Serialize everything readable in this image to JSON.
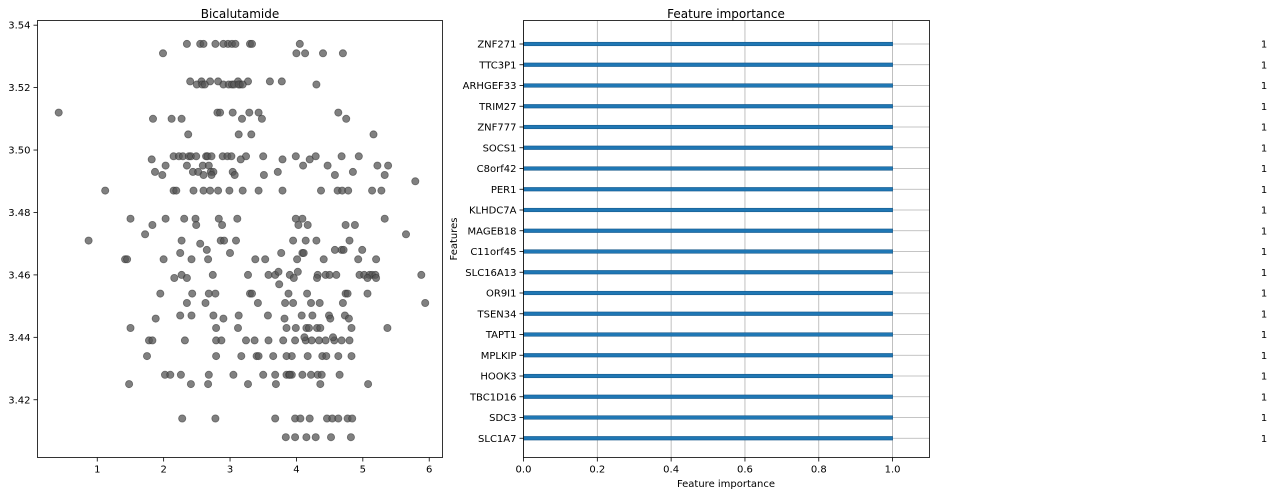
{
  "chart_data": [
    {
      "type": "scatter",
      "title": "Bicalutamide",
      "xlabel": "",
      "ylabel": "",
      "xlim": [
        0.1,
        6.2
      ],
      "ylim": [
        3.4015,
        3.5415
      ],
      "xticks": [
        1,
        2,
        3,
        4,
        5,
        6
      ],
      "yticks": [
        3.42,
        3.44,
        3.46,
        3.48,
        3.5,
        3.52,
        3.54
      ],
      "ytick_labels": [
        "3.42",
        "3.44",
        "3.46",
        "3.48",
        "3.50",
        "3.52",
        "3.54"
      ],
      "marker_color": "#555555",
      "points": [
        [
          2.97,
          3.534
        ],
        [
          2.55,
          3.534
        ],
        [
          2.6,
          3.534
        ],
        [
          2.78,
          3.534
        ],
        [
          2.9,
          3.534
        ],
        [
          3.03,
          3.534
        ],
        [
          3.08,
          3.534
        ],
        [
          3.3,
          3.534
        ],
        [
          3.33,
          3.534
        ],
        [
          4.05,
          3.534
        ],
        [
          2.35,
          3.534
        ],
        [
          1.99,
          3.531
        ],
        [
          4.0,
          3.531
        ],
        [
          4.13,
          3.531
        ],
        [
          4.4,
          3.531
        ],
        [
          4.7,
          3.531
        ],
        [
          2.4,
          3.522
        ],
        [
          2.57,
          3.522
        ],
        [
          2.7,
          3.522
        ],
        [
          2.82,
          3.522
        ],
        [
          3.12,
          3.522
        ],
        [
          3.27,
          3.522
        ],
        [
          3.6,
          3.522
        ],
        [
          3.78,
          3.522
        ],
        [
          3.15,
          3.521
        ],
        [
          2.5,
          3.521
        ],
        [
          2.58,
          3.521
        ],
        [
          2.62,
          3.521
        ],
        [
          2.9,
          3.521
        ],
        [
          2.98,
          3.521
        ],
        [
          3.03,
          3.521
        ],
        [
          3.06,
          3.521
        ],
        [
          3.13,
          3.521
        ],
        [
          3.19,
          3.521
        ],
        [
          4.3,
          3.521
        ],
        [
          0.42,
          3.512
        ],
        [
          2.81,
          3.512
        ],
        [
          2.85,
          3.512
        ],
        [
          3.04,
          3.512
        ],
        [
          3.29,
          3.512
        ],
        [
          3.43,
          3.512
        ],
        [
          4.63,
          3.512
        ],
        [
          1.84,
          3.51
        ],
        [
          2.12,
          3.51
        ],
        [
          2.27,
          3.51
        ],
        [
          3.18,
          3.51
        ],
        [
          3.48,
          3.51
        ],
        [
          4.75,
          3.51
        ],
        [
          2.37,
          3.505
        ],
        [
          3.13,
          3.505
        ],
        [
          3.32,
          3.505
        ],
        [
          5.16,
          3.505
        ],
        [
          2.15,
          3.498
        ],
        [
          2.23,
          3.498
        ],
        [
          2.29,
          3.498
        ],
        [
          2.38,
          3.498
        ],
        [
          2.41,
          3.498
        ],
        [
          2.49,
          3.498
        ],
        [
          2.64,
          3.498
        ],
        [
          2.66,
          3.498
        ],
        [
          2.72,
          3.498
        ],
        [
          2.89,
          3.498
        ],
        [
          2.96,
          3.498
        ],
        [
          3.02,
          3.498
        ],
        [
          3.24,
          3.498
        ],
        [
          3.5,
          3.498
        ],
        [
          3.99,
          3.498
        ],
        [
          4.29,
          3.498
        ],
        [
          4.68,
          3.498
        ],
        [
          4.94,
          3.498
        ],
        [
          1.82,
          3.497
        ],
        [
          3.16,
          3.497
        ],
        [
          3.79,
          3.497
        ],
        [
          4.2,
          3.497
        ],
        [
          2.03,
          3.495
        ],
        [
          2.35,
          3.495
        ],
        [
          2.59,
          3.495
        ],
        [
          2.68,
          3.495
        ],
        [
          4.1,
          3.495
        ],
        [
          4.47,
          3.495
        ],
        [
          5.22,
          3.495
        ],
        [
          5.38,
          3.495
        ],
        [
          1.87,
          3.493
        ],
        [
          2.44,
          3.493
        ],
        [
          2.52,
          3.493
        ],
        [
          2.71,
          3.493
        ],
        [
          2.75,
          3.493
        ],
        [
          3.04,
          3.493
        ],
        [
          3.72,
          3.493
        ],
        [
          4.85,
          3.493
        ],
        [
          1.98,
          3.492
        ],
        [
          2.6,
          3.492
        ],
        [
          2.72,
          3.492
        ],
        [
          3.07,
          3.492
        ],
        [
          3.51,
          3.492
        ],
        [
          4.58,
          3.492
        ],
        [
          5.33,
          3.492
        ],
        [
          5.79,
          3.49
        ],
        [
          1.12,
          3.487
        ],
        [
          2.15,
          3.487
        ],
        [
          2.19,
          3.487
        ],
        [
          2.6,
          3.487
        ],
        [
          2.7,
          3.487
        ],
        [
          2.82,
          3.487
        ],
        [
          2.99,
          3.487
        ],
        [
          3.19,
          3.487
        ],
        [
          3.43,
          3.487
        ],
        [
          3.79,
          3.487
        ],
        [
          4.37,
          3.487
        ],
        [
          4.62,
          3.487
        ],
        [
          4.69,
          3.487
        ],
        [
          4.78,
          3.487
        ],
        [
          5.14,
          3.487
        ],
        [
          5.28,
          3.487
        ],
        [
          2.45,
          3.487
        ],
        [
          2.03,
          3.478
        ],
        [
          2.31,
          3.478
        ],
        [
          2.48,
          3.478
        ],
        [
          2.83,
          3.478
        ],
        [
          3.11,
          3.478
        ],
        [
          3.99,
          3.478
        ],
        [
          4.09,
          3.478
        ],
        [
          5.33,
          3.478
        ],
        [
          1.5,
          3.478
        ],
        [
          1.83,
          3.476
        ],
        [
          2.49,
          3.476
        ],
        [
          2.88,
          3.476
        ],
        [
          4.03,
          3.476
        ],
        [
          4.17,
          3.476
        ],
        [
          4.74,
          3.476
        ],
        [
          4.88,
          3.476
        ],
        [
          1.72,
          3.473
        ],
        [
          5.65,
          3.473
        ],
        [
          0.87,
          3.471
        ],
        [
          2.27,
          3.471
        ],
        [
          2.86,
          3.471
        ],
        [
          2.91,
          3.471
        ],
        [
          3.09,
          3.471
        ],
        [
          3.95,
          3.471
        ],
        [
          4.14,
          3.471
        ],
        [
          4.3,
          3.471
        ],
        [
          4.8,
          3.471
        ],
        [
          2.55,
          3.47
        ],
        [
          2.65,
          3.468
        ],
        [
          4.58,
          3.468
        ],
        [
          4.68,
          3.468
        ],
        [
          4.71,
          3.468
        ],
        [
          4.99,
          3.468
        ],
        [
          4.09,
          3.467
        ],
        [
          2.25,
          3.467
        ],
        [
          3.0,
          3.467
        ],
        [
          3.77,
          3.467
        ],
        [
          4.11,
          3.467
        ],
        [
          1.42,
          3.465
        ],
        [
          1.45,
          3.465
        ],
        [
          2.0,
          3.465
        ],
        [
          2.42,
          3.465
        ],
        [
          2.67,
          3.465
        ],
        [
          3.38,
          3.465
        ],
        [
          3.53,
          3.465
        ],
        [
          4.01,
          3.465
        ],
        [
          4.41,
          3.465
        ],
        [
          4.93,
          3.465
        ],
        [
          5.2,
          3.465
        ],
        [
          3.58,
          3.46
        ],
        [
          2.74,
          3.46
        ],
        [
          2.27,
          3.46
        ],
        [
          3.27,
          3.46
        ],
        [
          3.68,
          3.46
        ],
        [
          3.9,
          3.46
        ],
        [
          4.32,
          3.46
        ],
        [
          4.44,
          3.46
        ],
        [
          4.5,
          3.46
        ],
        [
          4.6,
          3.46
        ],
        [
          4.95,
          3.46
        ],
        [
          5.02,
          3.46
        ],
        [
          5.1,
          3.46
        ],
        [
          5.14,
          3.46
        ],
        [
          5.19,
          3.46
        ],
        [
          5.88,
          3.46
        ],
        [
          3.73,
          3.461
        ],
        [
          4.02,
          3.461
        ],
        [
          2.16,
          3.459
        ],
        [
          2.35,
          3.459
        ],
        [
          3.96,
          3.459
        ],
        [
          4.31,
          3.459
        ],
        [
          5.2,
          3.459
        ],
        [
          5.07,
          3.459
        ],
        [
          3.74,
          3.457
        ],
        [
          2.43,
          3.454
        ],
        [
          2.68,
          3.454
        ],
        [
          3.3,
          3.454
        ],
        [
          3.33,
          3.454
        ],
        [
          3.88,
          3.454
        ],
        [
          4.16,
          3.454
        ],
        [
          4.74,
          3.454
        ],
        [
          4.77,
          3.454
        ],
        [
          5.07,
          3.454
        ],
        [
          2.78,
          3.454
        ],
        [
          1.95,
          3.454
        ],
        [
          2.35,
          3.451
        ],
        [
          2.63,
          3.451
        ],
        [
          3.42,
          3.451
        ],
        [
          3.83,
          3.451
        ],
        [
          3.95,
          3.451
        ],
        [
          4.22,
          3.451
        ],
        [
          4.35,
          3.451
        ],
        [
          4.7,
          3.451
        ],
        [
          5.94,
          3.451
        ],
        [
          2.25,
          3.447
        ],
        [
          2.42,
          3.447
        ],
        [
          2.75,
          3.447
        ],
        [
          3.13,
          3.447
        ],
        [
          3.57,
          3.447
        ],
        [
          4.08,
          3.447
        ],
        [
          4.24,
          3.447
        ],
        [
          4.49,
          3.447
        ],
        [
          4.73,
          3.447
        ],
        [
          3.82,
          3.446
        ],
        [
          4.51,
          3.446
        ],
        [
          4.79,
          3.446
        ],
        [
          2.9,
          3.446
        ],
        [
          1.88,
          3.446
        ],
        [
          1.5,
          3.443
        ],
        [
          2.79,
          3.443
        ],
        [
          3.12,
          3.443
        ],
        [
          3.85,
          3.443
        ],
        [
          3.99,
          3.443
        ],
        [
          4.15,
          3.443
        ],
        [
          4.19,
          3.443
        ],
        [
          4.31,
          3.443
        ],
        [
          4.36,
          3.443
        ],
        [
          4.83,
          3.443
        ],
        [
          5.37,
          3.443
        ],
        [
          1.78,
          3.439
        ],
        [
          1.83,
          3.439
        ],
        [
          2.32,
          3.439
        ],
        [
          2.79,
          3.439
        ],
        [
          2.87,
          3.439
        ],
        [
          3.24,
          3.439
        ],
        [
          3.37,
          3.439
        ],
        [
          3.58,
          3.439
        ],
        [
          3.8,
          3.439
        ],
        [
          3.98,
          3.439
        ],
        [
          4.14,
          3.439
        ],
        [
          4.23,
          3.439
        ],
        [
          4.34,
          3.439
        ],
        [
          4.44,
          3.439
        ],
        [
          4.57,
          3.439
        ],
        [
          4.68,
          3.439
        ],
        [
          4.8,
          3.439
        ],
        [
          4.12,
          3.44
        ],
        [
          4.55,
          3.44
        ],
        [
          1.75,
          3.434
        ],
        [
          2.79,
          3.434
        ],
        [
          3.17,
          3.434
        ],
        [
          3.4,
          3.434
        ],
        [
          3.43,
          3.434
        ],
        [
          3.65,
          3.434
        ],
        [
          3.93,
          3.434
        ],
        [
          4.17,
          3.434
        ],
        [
          4.39,
          3.434
        ],
        [
          4.63,
          3.434
        ],
        [
          4.83,
          3.434
        ],
        [
          3.85,
          3.434
        ],
        [
          4.45,
          3.434
        ],
        [
          2.02,
          3.428
        ],
        [
          2.1,
          3.428
        ],
        [
          2.26,
          3.428
        ],
        [
          2.68,
          3.428
        ],
        [
          3.05,
          3.428
        ],
        [
          3.5,
          3.428
        ],
        [
          3.68,
          3.428
        ],
        [
          3.85,
          3.428
        ],
        [
          3.89,
          3.428
        ],
        [
          3.93,
          3.428
        ],
        [
          4.09,
          3.428
        ],
        [
          4.22,
          3.428
        ],
        [
          4.32,
          3.428
        ],
        [
          4.38,
          3.428
        ],
        [
          4.65,
          3.428
        ],
        [
          3.9,
          3.428
        ],
        [
          1.48,
          3.425
        ],
        [
          2.41,
          3.425
        ],
        [
          2.67,
          3.425
        ],
        [
          3.27,
          3.425
        ],
        [
          3.69,
          3.425
        ],
        [
          4.36,
          3.425
        ],
        [
          5.08,
          3.425
        ],
        [
          2.28,
          3.414
        ],
        [
          2.78,
          3.414
        ],
        [
          3.68,
          3.414
        ],
        [
          3.98,
          3.414
        ],
        [
          4.06,
          3.414
        ],
        [
          4.2,
          3.414
        ],
        [
          4.46,
          3.414
        ],
        [
          4.54,
          3.414
        ],
        [
          4.63,
          3.414
        ],
        [
          4.77,
          3.414
        ],
        [
          4.84,
          3.414
        ],
        [
          3.84,
          3.408
        ],
        [
          3.98,
          3.408
        ],
        [
          4.15,
          3.408
        ],
        [
          4.29,
          3.408
        ],
        [
          4.52,
          3.408
        ],
        [
          4.82,
          3.408
        ]
      ]
    },
    {
      "type": "bar",
      "orientation": "horizontal",
      "title": "Feature importance",
      "xlabel": "Feature importance",
      "ylabel": "Features",
      "xlim": [
        0,
        1.1
      ],
      "xticks": [
        0.0,
        0.2,
        0.4,
        0.6,
        0.8,
        1.0
      ],
      "xtick_labels": [
        "0.0",
        "0.2",
        "0.4",
        "0.6",
        "0.8",
        "1.0"
      ],
      "bar_color": "#1f77b4",
      "categories": [
        "ZNF271",
        "TTC3P1",
        "ARHGEF33",
        "TRIM27",
        "ZNF777",
        "SOCS1",
        "C8orf42",
        "PER1",
        "KLHDC7A",
        "MAGEB18",
        "C11orf45",
        "SLC16A13",
        "OR9I1",
        "TSEN34",
        "TAPT1",
        "MPLKIP",
        "HOOK3",
        "TBC1D16",
        "SDC3",
        "SLC1A7"
      ],
      "values": [
        1,
        1,
        1,
        1,
        1,
        1,
        1,
        1,
        1,
        1,
        1,
        1,
        1,
        1,
        1,
        1,
        1,
        1,
        1,
        1
      ],
      "value_labels": [
        "1",
        "1",
        "1",
        "1",
        "1",
        "1",
        "1",
        "1",
        "1",
        "1",
        "1",
        "1",
        "1",
        "1",
        "1",
        "1",
        "1",
        "1",
        "1",
        "1"
      ]
    }
  ]
}
